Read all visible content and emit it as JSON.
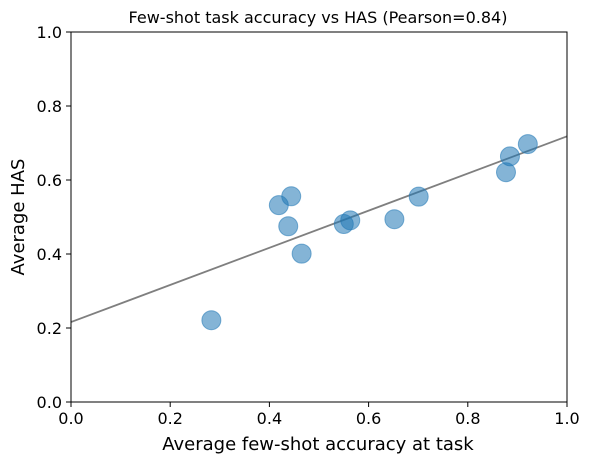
{
  "chart_data": {
    "type": "scatter",
    "title": "Few-shot task accuracy vs HAS (Pearson=0.84)",
    "xlabel": "Average few-shot accuracy at task",
    "ylabel": "Average HAS",
    "xlim": [
      0.0,
      1.0
    ],
    "ylim": [
      0.0,
      1.0
    ],
    "xticks": [
      0.0,
      0.2,
      0.4,
      0.6,
      0.8,
      1.0
    ],
    "yticks": [
      0.0,
      0.2,
      0.4,
      0.6,
      0.8,
      1.0
    ],
    "xtick_labels": [
      "0.0",
      "0.2",
      "0.4",
      "0.6",
      "0.8",
      "1.0"
    ],
    "ytick_labels": [
      "0.0",
      "0.2",
      "0.4",
      "0.6",
      "0.8",
      "1.0"
    ],
    "grid": false,
    "series": [
      {
        "points": [
          {
            "x": 0.283,
            "y": 0.221
          },
          {
            "x": 0.419,
            "y": 0.532
          },
          {
            "x": 0.438,
            "y": 0.475
          },
          {
            "x": 0.444,
            "y": 0.556
          },
          {
            "x": 0.465,
            "y": 0.401
          },
          {
            "x": 0.55,
            "y": 0.481
          },
          {
            "x": 0.563,
            "y": 0.491
          },
          {
            "x": 0.652,
            "y": 0.494
          },
          {
            "x": 0.701,
            "y": 0.555
          },
          {
            "x": 0.877,
            "y": 0.621
          },
          {
            "x": 0.885,
            "y": 0.664
          },
          {
            "x": 0.921,
            "y": 0.697
          }
        ],
        "color": "#1f77b4",
        "alpha": 0.55
      }
    ],
    "fit_line": {
      "points": [
        {
          "x": 0.0,
          "y": 0.216
        },
        {
          "x": 1.0,
          "y": 0.718
        }
      ],
      "color": "#7f7f7f"
    }
  }
}
